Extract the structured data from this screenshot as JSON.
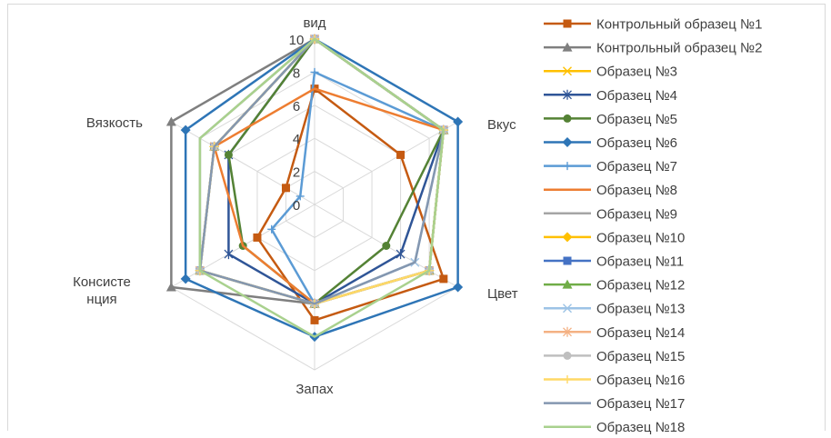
{
  "chart_data": {
    "type": "radar",
    "categories": [
      "вид",
      "Вкус",
      "Цвет",
      "Запах",
      "Консистенция",
      "Вязкость"
    ],
    "category_labels": [
      [
        "вид"
      ],
      [
        "Вкус"
      ],
      [
        "Цвет"
      ],
      [
        "Запах"
      ],
      [
        "Консисте",
        "нция"
      ],
      [
        "Вязкость"
      ]
    ],
    "rmin": 0,
    "rmax": 10,
    "ticks": [
      "0",
      "2",
      "4",
      "6",
      "8",
      "10"
    ],
    "tick_values": [
      0,
      2,
      4,
      6,
      8,
      10
    ],
    "grid": true,
    "legend_position": "right",
    "series": [
      {
        "name": "Контрольный образец №1",
        "color": "#c55a11",
        "marker": "square",
        "values": [
          7,
          6,
          9,
          7,
          4,
          2
        ]
      },
      {
        "name": "Контрольный образец №2",
        "color": "#7f7f7f",
        "marker": "triangle",
        "values": [
          10,
          9,
          8,
          6,
          10,
          10
        ]
      },
      {
        "name": "Образец №3",
        "color": "#ffc000",
        "marker": "x",
        "values": [
          10,
          9,
          8,
          6,
          8,
          7
        ]
      },
      {
        "name": "Образец №4",
        "color": "#2f5597",
        "marker": "star",
        "values": [
          10,
          9,
          6,
          6,
          6,
          6
        ]
      },
      {
        "name": "Образец №5",
        "color": "#548235",
        "marker": "circle",
        "values": [
          10,
          9,
          5,
          6,
          5,
          6
        ]
      },
      {
        "name": "Образец №6",
        "color": "#2e75b6",
        "marker": "diamond",
        "values": [
          10,
          10,
          10,
          8,
          9,
          9
        ]
      },
      {
        "name": "Образец №7",
        "color": "#5b9bd5",
        "marker": "plus",
        "values": [
          8,
          9,
          8,
          6,
          3,
          1
        ]
      },
      {
        "name": "Образец №8",
        "color": "#ed7d31",
        "marker": "none",
        "values": [
          7,
          9,
          8,
          6,
          5,
          7
        ]
      },
      {
        "name": "Образец №9",
        "color": "#a5a5a5",
        "marker": "none",
        "values": [
          10,
          9,
          8,
          6,
          8,
          8
        ]
      },
      {
        "name": "Образец №10",
        "color": "#ffc000",
        "marker": "diamond",
        "values": [
          10,
          9,
          8,
          6,
          8,
          7
        ]
      },
      {
        "name": "Образец №11",
        "color": "#4472c4",
        "marker": "square",
        "values": [
          10,
          9,
          8,
          6,
          8,
          7
        ]
      },
      {
        "name": "Образец №12",
        "color": "#70ad47",
        "marker": "triangle",
        "values": [
          10,
          9,
          8,
          6,
          8,
          7
        ]
      },
      {
        "name": "Образец №13",
        "color": "#9dc3e6",
        "marker": "x",
        "values": [
          10,
          9,
          7,
          6,
          8,
          7
        ]
      },
      {
        "name": "Образец №14",
        "color": "#f4b183",
        "marker": "star",
        "values": [
          10,
          9,
          8,
          6,
          8,
          7
        ]
      },
      {
        "name": "Образец №15",
        "color": "#bfbfbf",
        "marker": "circle",
        "values": [
          10,
          9,
          8,
          6,
          8,
          7
        ]
      },
      {
        "name": "Образец №16",
        "color": "#ffd966",
        "marker": "plus",
        "values": [
          10,
          9,
          8,
          6,
          8,
          7
        ]
      },
      {
        "name": "Образец №17",
        "color": "#8497b0",
        "marker": "none",
        "values": [
          10,
          9,
          7,
          6,
          8,
          7
        ]
      },
      {
        "name": "Образец №18",
        "color": "#a9d18e",
        "marker": "none",
        "values": [
          10,
          9,
          8,
          8,
          8,
          8
        ]
      }
    ]
  }
}
